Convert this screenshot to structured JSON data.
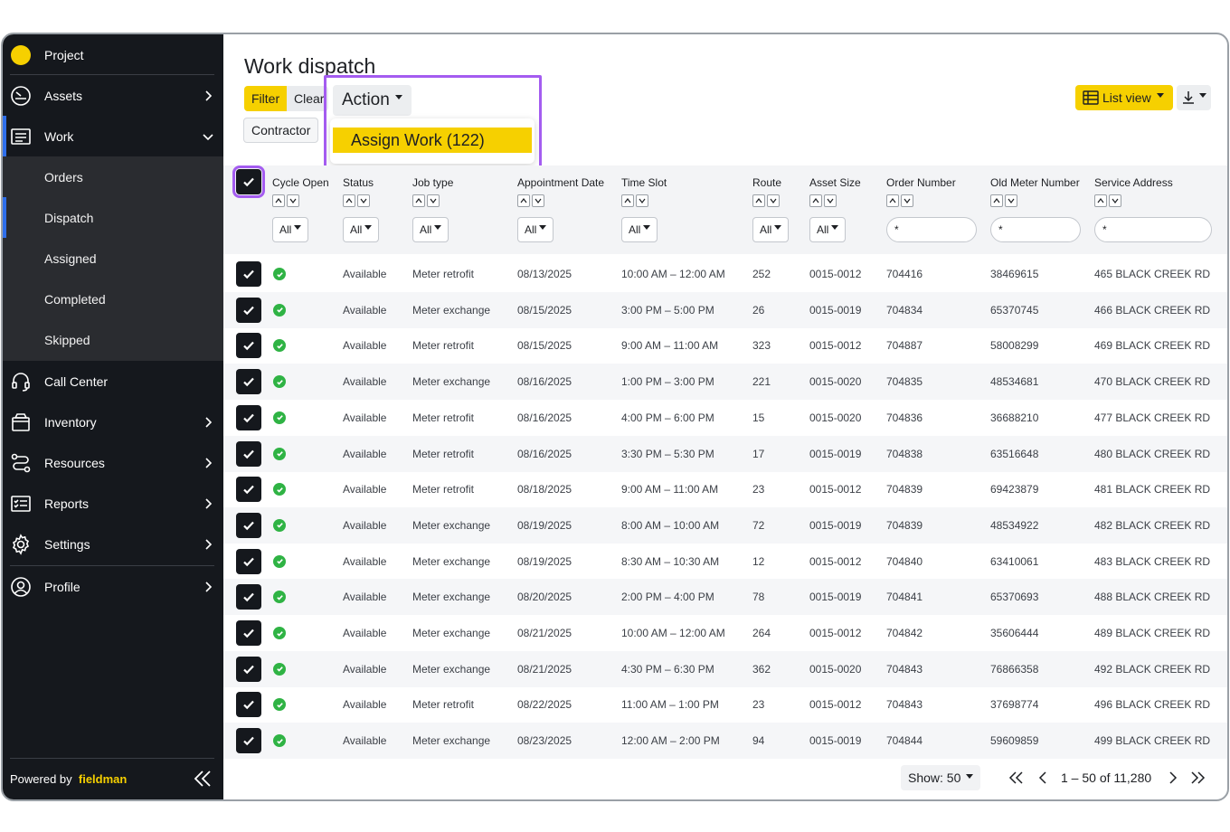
{
  "sidebar": {
    "project": "Project",
    "assets": "Assets",
    "work": "Work",
    "sub_items": [
      "Orders",
      "Dispatch",
      "Assigned",
      "Completed",
      "Skipped"
    ],
    "call_center": "Call Center",
    "inventory": "Inventory",
    "resources": "Resources",
    "reports": "Reports",
    "settings": "Settings",
    "profile": "Profile",
    "powered_by": "Powered by",
    "brand": "fieldman"
  },
  "header": {
    "title": "Work dispatch",
    "filter": "Filter",
    "clear": "Clear",
    "contractor": "Contractor",
    "action": "Action",
    "assign_work": "Assign Work (122)",
    "list_view": "List view"
  },
  "table": {
    "columns": [
      "Cycle Open",
      "Status",
      "Job type",
      "Appointment Date",
      "Time Slot",
      "Route",
      "Asset Size",
      "Order Number",
      "Old Meter Number",
      "Service Address"
    ],
    "filter_all": "All",
    "filter_text": "*",
    "rows": [
      [
        "Available",
        "Meter retrofit",
        "08/13/2025",
        "10:00 AM – 12:00 AM",
        "252",
        "0015-0012",
        "704416",
        "38469615",
        "465 BLACK CREEK RD"
      ],
      [
        "Available",
        "Meter exchange",
        "08/15/2025",
        "3:00 PM – 5:00 PM",
        "26",
        "0015-0019",
        "704834",
        "65370745",
        "466 BLACK CREEK RD"
      ],
      [
        "Available",
        "Meter retrofit",
        "08/15/2025",
        "9:00 AM – 11:00 AM",
        "323",
        "0015-0012",
        "704887",
        "58008299",
        "469 BLACK CREEK RD"
      ],
      [
        "Available",
        "Meter exchange",
        "08/16/2025",
        "1:00 PM – 3:00 PM",
        "221",
        "0015-0020",
        "704835",
        "48534681",
        "470 BLACK CREEK RD"
      ],
      [
        "Available",
        "Meter retrofit",
        "08/16/2025",
        "4:00 PM – 6:00 PM",
        "15",
        "0015-0020",
        "704836",
        "36688210",
        "477 BLACK CREEK RD"
      ],
      [
        "Available",
        "Meter retrofit",
        "08/16/2025",
        "3:30 PM – 5:30 PM",
        "17",
        "0015-0019",
        "704838",
        "63516648",
        "480 BLACK CREEK RD"
      ],
      [
        "Available",
        "Meter retrofit",
        "08/18/2025",
        "9:00 AM – 11:00 AM",
        "23",
        "0015-0012",
        "704839",
        "69423879",
        "481 BLACK CREEK RD"
      ],
      [
        "Available",
        "Meter exchange",
        "08/19/2025",
        "8:00 AM – 10:00 AM",
        "72",
        "0015-0019",
        "704839",
        "48534922",
        "482 BLACK CREEK RD"
      ],
      [
        "Available",
        "Meter exchange",
        "08/19/2025",
        "8:30 AM – 10:30 AM",
        "12",
        "0015-0012",
        "704840",
        "63410061",
        "483 BLACK CREEK RD"
      ],
      [
        "Available",
        "Meter exchange",
        "08/20/2025",
        "2:00 PM – 4:00 PM",
        "78",
        "0015-0019",
        "704841",
        "65370693",
        "488 BLACK CREEK RD"
      ],
      [
        "Available",
        "Meter exchange",
        "08/21/2025",
        "10:00 AM – 12:00 AM",
        "264",
        "0015-0012",
        "704842",
        "35606444",
        "489 BLACK CREEK RD"
      ],
      [
        "Available",
        "Meter exchange",
        "08/21/2025",
        "4:30 PM – 6:30 PM",
        "362",
        "0015-0020",
        "704843",
        "76866358",
        "492 BLACK CREEK RD"
      ],
      [
        "Available",
        "Meter retrofit",
        "08/22/2025",
        "11:00 AM – 1:00 PM",
        "23",
        "0015-0012",
        "704843",
        "37698774",
        "496 BLACK CREEK RD"
      ],
      [
        "Available",
        "Meter exchange",
        "08/23/2025",
        "12:00 AM – 2:00 PM",
        "94",
        "0015-0019",
        "704844",
        "59609859",
        "499 BLACK CREEK RD"
      ]
    ]
  },
  "pagination": {
    "show": "Show: 50",
    "range": "1 – 50 of 11,280"
  },
  "colors": {
    "accent": "#f6d000",
    "highlight": "#a45cf0",
    "sidebar": "#15181d",
    "success": "#2fb344"
  }
}
